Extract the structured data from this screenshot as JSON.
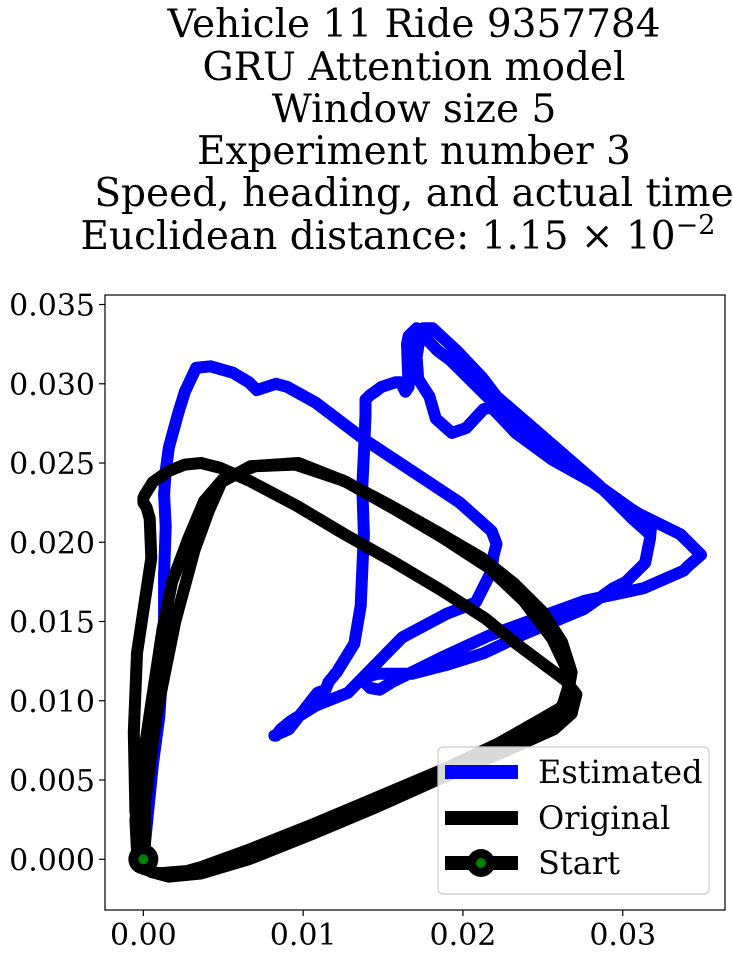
{
  "chart_data": {
    "type": "line",
    "title_lines": [
      "Vehicle 11 Ride 9357784",
      "GRU Attention model",
      "Window size 5",
      "Experiment number 3",
      "Speed, heading, and actual time",
      "Euclidean distance: 1.15 × 10"
    ],
    "title_exponent": "−2",
    "xlabel": "",
    "ylabel": "",
    "xlim": [
      -0.0024,
      0.0364
    ],
    "ylim": [
      -0.0032,
      0.0356
    ],
    "xticks": [
      0.0,
      0.01,
      0.02,
      0.03
    ],
    "xtick_labels": [
      "0.00",
      "0.01",
      "0.02",
      "0.03"
    ],
    "yticks": [
      0.0,
      0.005,
      0.01,
      0.015,
      0.02,
      0.025,
      0.03,
      0.035
    ],
    "ytick_labels": [
      "0.000",
      "0.005",
      "0.010",
      "0.015",
      "0.020",
      "0.025",
      "0.030",
      "0.035"
    ],
    "grid": false,
    "legend_position": "bottom-right",
    "series": [
      {
        "name": "Estimated",
        "color": "#0000ff",
        "x": [
          0.0,
          0.0003,
          0.0006,
          0.001,
          0.0012,
          0.0013,
          0.0013,
          0.0014,
          0.0013,
          0.0014,
          0.0016,
          0.0022,
          0.0026,
          0.0033,
          0.0042,
          0.0056,
          0.0066,
          0.0071,
          0.0083,
          0.009,
          0.0108,
          0.0138,
          0.0168,
          0.0198,
          0.0218,
          0.0221,
          0.0219,
          0.0218,
          0.0208,
          0.019,
          0.0162,
          0.0128,
          0.0108,
          0.0092,
          0.0086,
          0.0083,
          0.0082,
          0.0091,
          0.0109,
          0.0114,
          0.0116,
          0.0121,
          0.0132,
          0.0136,
          0.0138,
          0.0137,
          0.0138,
          0.0139,
          0.0139,
          0.0142,
          0.0145,
          0.0149,
          0.0158,
          0.0161,
          0.0162,
          0.0164,
          0.0166,
          0.0165,
          0.0166,
          0.0171,
          0.0184,
          0.0192,
          0.0203,
          0.0213,
          0.0222,
          0.0226,
          0.0258,
          0.0283,
          0.0308,
          0.0336,
          0.0349,
          0.0341,
          0.0338,
          0.0313,
          0.0276,
          0.0246,
          0.0216,
          0.0186,
          0.0156,
          0.0148,
          0.0142,
          0.0139,
          0.0138,
          0.0147,
          0.0168,
          0.0191,
          0.0213,
          0.0238,
          0.0276,
          0.0294,
          0.0302,
          0.0314,
          0.0317,
          0.0318,
          0.0302,
          0.0281,
          0.0256,
          0.0233,
          0.0218,
          0.0213,
          0.0202,
          0.0193,
          0.0183,
          0.0179,
          0.0172,
          0.0171,
          0.0173,
          0.0175,
          0.0181,
          0.0196,
          0.0212,
          0.0221,
          0.0252,
          0.0284,
          0.0306,
          0.0317
        ],
        "y": [
          0.0,
          0.003,
          0.006,
          0.009,
          0.012,
          0.015,
          0.018,
          0.021,
          0.023,
          0.0245,
          0.026,
          0.0282,
          0.0295,
          0.031,
          0.0311,
          0.0307,
          0.0301,
          0.0296,
          0.03,
          0.0298,
          0.0288,
          0.0265,
          0.0245,
          0.0225,
          0.0207,
          0.0199,
          0.0191,
          0.0182,
          0.0162,
          0.0155,
          0.014,
          0.0105,
          0.0097,
          0.0087,
          0.0082,
          0.0078,
          0.0078,
          0.0082,
          0.0105,
          0.0107,
          0.0112,
          0.0118,
          0.0136,
          0.016,
          0.0205,
          0.0235,
          0.0256,
          0.028,
          0.029,
          0.0293,
          0.0295,
          0.0298,
          0.0301,
          0.0301,
          0.0299,
          0.0295,
          0.0298,
          0.0325,
          0.033,
          0.0335,
          0.0321,
          0.0315,
          0.0304,
          0.0294,
          0.0285,
          0.0279,
          0.0258,
          0.0237,
          0.0219,
          0.0205,
          0.0192,
          0.0185,
          0.0182,
          0.0171,
          0.0163,
          0.0152,
          0.0141,
          0.0127,
          0.0112,
          0.0107,
          0.0108,
          0.0111,
          0.0115,
          0.0117,
          0.0117,
          0.0123,
          0.013,
          0.0142,
          0.0158,
          0.0171,
          0.0175,
          0.0187,
          0.0202,
          0.0213,
          0.0223,
          0.0238,
          0.0252,
          0.0269,
          0.0285,
          0.0284,
          0.0272,
          0.0269,
          0.0278,
          0.0292,
          0.0303,
          0.0317,
          0.0329,
          0.0335,
          0.0335,
          0.0321,
          0.0304,
          0.0292,
          0.0265,
          0.0237,
          0.0215,
          0.0205
        ]
      },
      {
        "name": "Original",
        "color": "#000000",
        "x": [
          0.0,
          -0.0005,
          -0.0006,
          -0.0004,
          0.0002,
          0.0005,
          0.0004,
          0.0002,
          0.0,
          0.0,
          0.0001,
          0.0006,
          0.0016,
          0.0026,
          0.0036,
          0.0048,
          0.0066,
          0.0096,
          0.0126,
          0.0156,
          0.0186,
          0.0214,
          0.0232,
          0.0252,
          0.0264,
          0.0271,
          0.0268,
          0.0257,
          0.0226,
          0.0186,
          0.0146,
          0.0106,
          0.0066,
          0.0036,
          0.0016,
          0.0005,
          0.0001,
          0.0001,
          0.0008,
          0.002,
          0.0032,
          0.0041,
          0.0049,
          0.0067,
          0.0097,
          0.0127,
          0.0157,
          0.0187,
          0.0216,
          0.0238,
          0.0256,
          0.0264,
          0.0266,
          0.0262,
          0.025,
          0.0222,
          0.0182,
          0.0142,
          0.0102,
          0.0062,
          0.0032,
          0.0009,
          0.0,
          -0.0004,
          -0.0005,
          0.0,
          0.0006,
          0.0012,
          0.0018,
          0.0028,
          0.0038,
          0.005,
          0.007,
          0.0095,
          0.0125,
          0.0155,
          0.0185,
          0.0212,
          0.0232,
          0.025,
          0.0262,
          0.0268,
          0.0265,
          0.0254,
          0.0224,
          0.0186,
          0.0146,
          0.0106,
          0.0066,
          0.0036,
          0.0018,
          0.0006,
          0.0
        ],
        "y": [
          0.0,
          0.003,
          0.008,
          0.013,
          0.017,
          0.019,
          0.0215,
          0.0222,
          0.0225,
          0.0228,
          0.023,
          0.0238,
          0.0245,
          0.0249,
          0.025,
          0.0247,
          0.0239,
          0.0223,
          0.0205,
          0.0188,
          0.017,
          0.0152,
          0.0137,
          0.0122,
          0.0113,
          0.0104,
          0.0092,
          0.0082,
          0.0068,
          0.0051,
          0.0033,
          0.0016,
          0.0,
          -0.0009,
          -0.0011,
          -0.0008,
          0.0,
          0.0035,
          0.009,
          0.015,
          0.0195,
          0.022,
          0.0238,
          0.0248,
          0.025,
          0.0238,
          0.0221,
          0.0203,
          0.0184,
          0.0163,
          0.0139,
          0.0122,
          0.0109,
          0.0096,
          0.0089,
          0.0073,
          0.0054,
          0.0037,
          0.002,
          0.0004,
          -0.0007,
          -0.0009,
          -0.0006,
          0.0005,
          0.0025,
          0.0065,
          0.0105,
          0.0145,
          0.0175,
          0.0202,
          0.0226,
          0.024,
          0.0248,
          0.0249,
          0.0239,
          0.0223,
          0.0206,
          0.019,
          0.0174,
          0.0156,
          0.0137,
          0.0118,
          0.01,
          0.0088,
          0.0073,
          0.0056,
          0.0039,
          0.0022,
          0.0006,
          -0.0005,
          -0.001,
          -0.0008,
          0.0
        ]
      }
    ],
    "start_point": {
      "name": "Start",
      "x": 0.0,
      "y": 0.0,
      "outer_color": "#000000",
      "inner_color": "#008000"
    },
    "legend": [
      {
        "label": "Estimated",
        "color": "#0000ff",
        "style": "line"
      },
      {
        "label": "Original",
        "color": "#000000",
        "style": "line"
      },
      {
        "label": "Start",
        "color": "#000000",
        "style": "marker",
        "marker_inner": "#008000"
      }
    ]
  }
}
